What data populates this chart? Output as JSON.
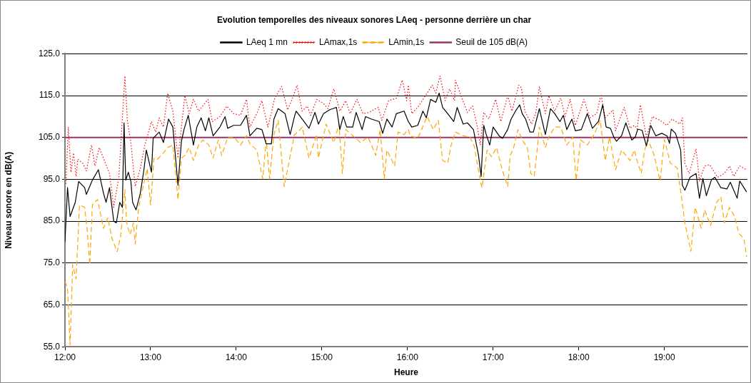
{
  "chart_data": {
    "type": "line",
    "title": "Evolution temporelles des niveaux sonores LAeq - personne derrière un char",
    "xlabel": "Heure",
    "ylabel": "Niveau sonore en dB(A)",
    "xlim": [
      12,
      19.97
    ],
    "xticks": [
      {
        "value": 12,
        "label": "12:00"
      },
      {
        "value": 13,
        "label": "13:00"
      },
      {
        "value": 14,
        "label": "14:00"
      },
      {
        "value": 15,
        "label": "15:00"
      },
      {
        "value": 16,
        "label": "16:00"
      },
      {
        "value": 17,
        "label": "17:00"
      },
      {
        "value": 18,
        "label": "18:00"
      },
      {
        "value": 19,
        "label": "19:00"
      }
    ],
    "ylim": [
      55,
      125
    ],
    "yticks": [
      {
        "value": 55,
        "label": "55.0"
      },
      {
        "value": 65,
        "label": "65.0"
      },
      {
        "value": 75,
        "label": "75.0"
      },
      {
        "value": 85,
        "label": "85.0"
      },
      {
        "value": 95,
        "label": "95.0"
      },
      {
        "value": 105,
        "label": "105.0"
      },
      {
        "value": 115,
        "label": "115.0"
      },
      {
        "value": 125,
        "label": "125.0"
      }
    ],
    "grid": "y",
    "legend": "top",
    "marker": "none",
    "ref_lines": [
      {
        "axis": "y",
        "value": 105,
        "label": "Seuil de 105 dB(A)",
        "color": "#993366"
      }
    ],
    "series": [
      {
        "name": "LAeq 1 mn",
        "color": "#000000",
        "line_style": "solid",
        "x": [
          12.0,
          12.03,
          12.06,
          12.12,
          12.16,
          12.23,
          12.25,
          12.32,
          12.39,
          12.45,
          12.48,
          12.52,
          12.57,
          12.6,
          12.64,
          12.67,
          12.69,
          12.71,
          12.74,
          12.77,
          12.79,
          12.83,
          12.88,
          12.92,
          12.95,
          13.01,
          13.03,
          13.1,
          13.15,
          13.21,
          13.26,
          13.32,
          13.36,
          13.39,
          13.44,
          13.5,
          13.54,
          13.59,
          13.64,
          13.68,
          13.73,
          13.81,
          13.87,
          13.9,
          13.97,
          14.05,
          14.12,
          14.16,
          14.24,
          14.3,
          14.35,
          14.41,
          14.44,
          14.49,
          14.57,
          14.63,
          14.68,
          14.7,
          14.77,
          14.85,
          14.92,
          14.96,
          15.02,
          15.09,
          15.17,
          15.21,
          15.25,
          15.29,
          15.36,
          15.4,
          15.47,
          15.51,
          15.58,
          15.67,
          15.71,
          15.76,
          15.82,
          15.87,
          15.96,
          16.01,
          16.05,
          16.12,
          16.18,
          16.22,
          16.27,
          16.33,
          16.37,
          16.41,
          16.47,
          16.54,
          16.58,
          16.65,
          16.7,
          16.77,
          16.83,
          16.86,
          16.89,
          16.92,
          16.96,
          17.0,
          17.07,
          17.11,
          17.17,
          17.21,
          17.27,
          17.31,
          17.34,
          17.38,
          17.43,
          17.47,
          17.54,
          17.61,
          17.67,
          17.72,
          17.78,
          17.82,
          17.86,
          17.92,
          17.96,
          18.03,
          18.1,
          18.16,
          18.23,
          18.28,
          18.32,
          18.37,
          18.41,
          18.44,
          18.5,
          18.55,
          18.62,
          18.66,
          18.69,
          18.74,
          18.79,
          18.84,
          18.9,
          18.97,
          19.03,
          19.06,
          19.08,
          19.13,
          19.19,
          19.21,
          19.24,
          19.3,
          19.37,
          19.41,
          19.45,
          19.49,
          19.55,
          19.59,
          19.66,
          19.73,
          19.77,
          19.85,
          19.88,
          19.96
        ],
        "values": [
          80,
          93,
          86.1,
          89.5,
          94.5,
          93,
          91.4,
          94.8,
          97.3,
          91.7,
          89.5,
          93,
          85,
          84.6,
          89.5,
          88.3,
          108.5,
          94.8,
          96.7,
          94.5,
          89.5,
          87.7,
          91.7,
          97,
          102,
          96.7,
          104.8,
          106.3,
          103.8,
          109.4,
          107.5,
          93.6,
          104.1,
          106.9,
          110.3,
          103.2,
          107.5,
          109.7,
          106.6,
          109.7,
          105.4,
          107.5,
          110,
          107.2,
          107.9,
          107.9,
          110.3,
          105.4,
          107.2,
          106.9,
          103.5,
          103.5,
          109.4,
          111.9,
          110.7,
          105.7,
          110,
          111.3,
          109.4,
          107.2,
          111,
          108.2,
          110.7,
          111.6,
          112.2,
          106.9,
          110,
          107.5,
          107.5,
          111,
          106.9,
          110,
          109.4,
          108.8,
          106,
          109.4,
          107.5,
          110.7,
          111.3,
          108.8,
          107.5,
          107.9,
          111.3,
          109.7,
          114.1,
          113.4,
          115.6,
          112.2,
          110.7,
          108.8,
          112.2,
          108.2,
          108.5,
          106.9,
          100.7,
          95.7,
          107.9,
          105.7,
          103.2,
          107.5,
          105.4,
          104.8,
          106.9,
          109.4,
          111.6,
          112.8,
          110.7,
          109.4,
          106.3,
          106.3,
          111.9,
          105.7,
          111.9,
          110.7,
          108.8,
          110.3,
          106.9,
          109.4,
          106.6,
          106.9,
          110.7,
          107.2,
          108.8,
          112.8,
          107.5,
          107.2,
          105.1,
          104.1,
          105.4,
          108.5,
          104.4,
          105.1,
          107,
          106.7,
          103,
          107.9,
          105.4,
          106,
          105.4,
          103.6,
          107,
          106,
          102,
          93.6,
          92.4,
          95.5,
          96.4,
          90.5,
          95.2,
          91.1,
          94.9,
          95.5,
          93,
          92.7,
          94.3,
          90.5,
          94.6,
          92
        ]
      },
      {
        "name": "LAmax,1s",
        "color": "#ff0000",
        "line_style": "dotted",
        "x": [
          12.01,
          12.04,
          12.07,
          12.1,
          12.13,
          12.15,
          12.21,
          12.25,
          12.31,
          12.35,
          12.4,
          12.46,
          12.52,
          12.57,
          12.63,
          12.7,
          12.73,
          12.77,
          12.82,
          12.88,
          12.93,
          13.01,
          13.06,
          13.1,
          13.15,
          13.2,
          13.26,
          13.32,
          13.36,
          13.4,
          13.45,
          13.5,
          13.56,
          13.67,
          13.72,
          13.81,
          13.89,
          13.97,
          14.05,
          14.12,
          14.16,
          14.24,
          14.3,
          14.37,
          14.45,
          14.53,
          14.6,
          14.67,
          14.71,
          14.77,
          14.83,
          14.87,
          14.94,
          15.02,
          15.07,
          15.14,
          15.21,
          15.28,
          15.33,
          15.41,
          15.48,
          15.55,
          15.66,
          15.7,
          15.78,
          15.87,
          15.94,
          15.99,
          16.01,
          16.05,
          16.12,
          16.2,
          16.29,
          16.33,
          16.38,
          16.44,
          16.49,
          16.55,
          16.56,
          16.62,
          16.7,
          16.76,
          16.81,
          16.85,
          16.89,
          16.95,
          17.03,
          17.09,
          17.17,
          17.22,
          17.3,
          17.33,
          17.37,
          17.45,
          17.5,
          17.54,
          17.61,
          17.65,
          17.72,
          17.79,
          17.84,
          17.9,
          17.96,
          18.06,
          18.13,
          18.21,
          18.26,
          18.31,
          18.4,
          18.43,
          18.53,
          18.6,
          18.65,
          18.68,
          18.72,
          18.79,
          18.86,
          18.95,
          19.03,
          19.09,
          19.18,
          19.21,
          19.24,
          19.29,
          19.37,
          19.41,
          19.47,
          19.53,
          19.62,
          19.7,
          19.76,
          19.81,
          19.88,
          19.96
        ],
        "values": [
          93.9,
          107.5,
          96.7,
          101.3,
          95.7,
          99.8,
          98.8,
          97,
          103.2,
          98.2,
          102.6,
          99.5,
          96.4,
          88.3,
          95.7,
          119.7,
          108.8,
          103.8,
          93.3,
          97.6,
          102.9,
          108.8,
          106.3,
          109.7,
          107.5,
          115.6,
          111.3,
          100.1,
          107.5,
          115,
          110.7,
          114.1,
          111.3,
          114.1,
          108.8,
          110,
          112.5,
          110.7,
          110.3,
          114.1,
          107.5,
          110.7,
          113.8,
          107.5,
          114.4,
          117.2,
          111.6,
          115,
          117.5,
          111.3,
          112.5,
          110.3,
          114.1,
          113.1,
          111.9,
          116.6,
          111.3,
          113.8,
          110.7,
          114.1,
          110.7,
          111,
          112.2,
          109.1,
          113.8,
          114.4,
          118.7,
          113.8,
          117.5,
          110.7,
          112.2,
          114.7,
          117.5,
          115.6,
          119.7,
          113.8,
          116.6,
          113.8,
          118.7,
          115.3,
          111,
          112.5,
          108.2,
          103.2,
          111,
          109.4,
          114.1,
          108.8,
          115,
          111.3,
          117.5,
          116.9,
          111.3,
          108.2,
          111,
          117.2,
          110.7,
          115,
          111.3,
          114.4,
          110,
          114.1,
          107.9,
          114.1,
          109.7,
          110.7,
          115.3,
          109.7,
          111.6,
          106.6,
          112.2,
          107.2,
          107.9,
          107,
          112.8,
          105.1,
          110,
          109.1,
          107.9,
          109.4,
          108.2,
          109.7,
          98.8,
          96.4,
          102.3,
          94.6,
          98.2,
          98.5,
          95.5,
          96.4,
          98.2,
          95.7,
          98.2,
          97.3
        ]
      },
      {
        "name": "LAmin,1s",
        "color": "#ffa500",
        "line_style": "dashed",
        "x": [
          12.0,
          12.03,
          12.06,
          12.09,
          12.13,
          12.17,
          12.23,
          12.26,
          12.29,
          12.32,
          12.38,
          12.45,
          12.5,
          12.55,
          12.61,
          12.65,
          12.7,
          12.72,
          12.76,
          12.8,
          12.82,
          12.86,
          12.92,
          12.96,
          13.0,
          13.04,
          13.08,
          13.15,
          13.2,
          13.26,
          13.32,
          13.36,
          13.4,
          13.45,
          13.5,
          13.56,
          13.61,
          13.68,
          13.73,
          13.79,
          13.83,
          13.9,
          13.98,
          14.05,
          14.12,
          14.16,
          14.24,
          14.31,
          14.35,
          14.39,
          14.44,
          14.49,
          14.56,
          14.62,
          14.68,
          14.72,
          14.77,
          14.85,
          14.94,
          14.96,
          15.05,
          15.14,
          15.2,
          15.24,
          15.28,
          15.38,
          15.45,
          15.54,
          15.63,
          15.68,
          15.73,
          15.76,
          15.85,
          15.89,
          15.96,
          16.01,
          16.03,
          16.12,
          16.23,
          16.3,
          16.36,
          16.41,
          16.47,
          16.51,
          16.56,
          16.65,
          16.73,
          16.78,
          16.83,
          16.87,
          16.93,
          16.98,
          17.04,
          17.11,
          17.17,
          17.2,
          17.24,
          17.29,
          17.34,
          17.4,
          17.44,
          17.48,
          17.52,
          17.54,
          17.61,
          17.65,
          17.72,
          17.79,
          17.86,
          17.93,
          17.97,
          18.02,
          18.1,
          18.18,
          18.25,
          18.31,
          18.36,
          18.43,
          18.5,
          18.6,
          18.65,
          18.68,
          18.73,
          18.77,
          18.81,
          18.88,
          18.95,
          19.0,
          19.07,
          19.15,
          19.2,
          19.24,
          19.31,
          19.36,
          19.43,
          19.47,
          19.54,
          19.61,
          19.66,
          19.7,
          19.76,
          19.82,
          19.87,
          19.93,
          19.96
        ],
        "values": [
          70.6,
          69,
          55.4,
          74.6,
          71.2,
          88.9,
          88.3,
          82.7,
          74.6,
          88.9,
          90.2,
          83.3,
          85.8,
          80.8,
          77.7,
          81.4,
          92.6,
          84.6,
          81.8,
          84.6,
          79.6,
          88.3,
          93.9,
          97.6,
          88.9,
          100.1,
          99.8,
          101.3,
          102.6,
          103.2,
          90.2,
          100.1,
          100.7,
          102.6,
          99.5,
          103.2,
          104.4,
          103.2,
          100.1,
          104.4,
          100.7,
          105,
          105,
          103.2,
          105.4,
          103.5,
          102,
          95.1,
          104.4,
          95.1,
          105.7,
          109.1,
          93.3,
          99.5,
          105.7,
          106.3,
          107.5,
          100.1,
          105.7,
          100.1,
          108.2,
          103.8,
          108.2,
          96.4,
          106.9,
          105.1,
          103.8,
          105.1,
          100.7,
          106.9,
          95.1,
          102,
          98.2,
          106.3,
          105.7,
          106.9,
          105.4,
          104.8,
          110,
          106.9,
          109.1,
          99.5,
          98.9,
          103.2,
          106.3,
          105.4,
          105.1,
          102.9,
          97,
          93,
          102,
          100.4,
          102.6,
          97,
          93.3,
          100.7,
          102.6,
          106.9,
          104.4,
          102.6,
          96.4,
          95.7,
          103.2,
          107.5,
          102.6,
          105.1,
          107.5,
          107.5,
          103.2,
          105.1,
          94.8,
          104.4,
          103.2,
          105.7,
          109.1,
          99.5,
          105.1,
          97.3,
          102,
          99.5,
          102,
          99.5,
          96.4,
          102,
          104.5,
          100.8,
          94.6,
          104.5,
          98.9,
          97.7,
          90.8,
          84.6,
          77.8,
          88.3,
          83.3,
          87.7,
          84,
          89.5,
          90.8,
          84.6,
          88.3,
          86.1,
          82.1,
          80.8,
          76.5
        ]
      }
    ]
  }
}
